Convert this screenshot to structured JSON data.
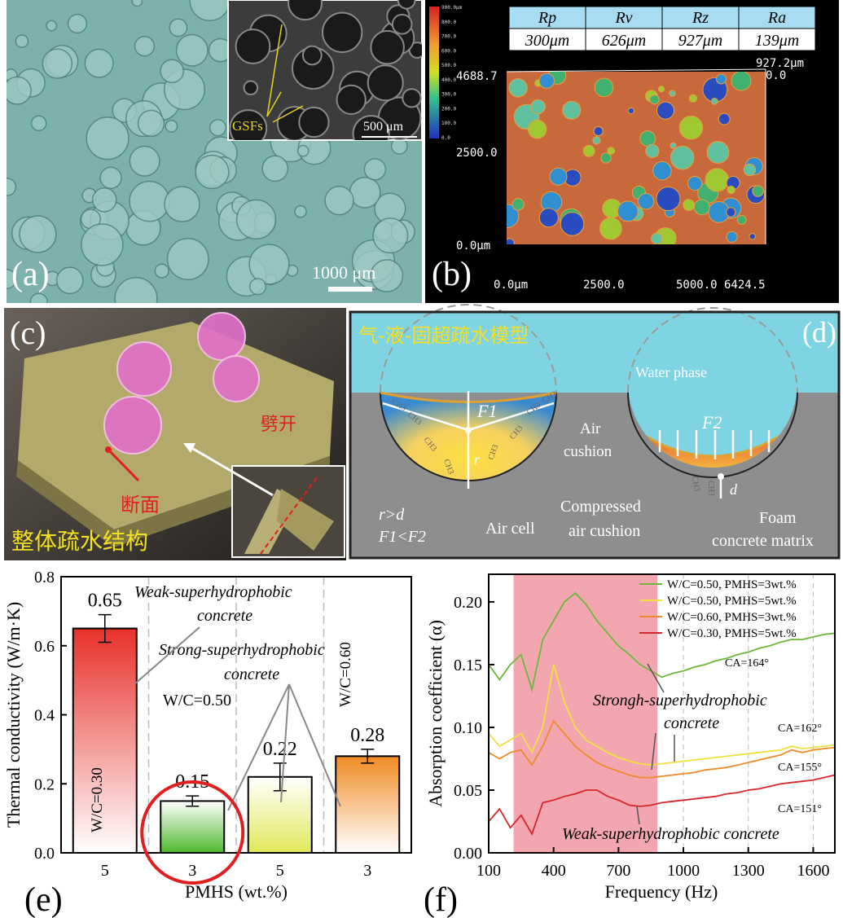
{
  "panels": {
    "a": {
      "label": "(a)",
      "inset_annotation": "GSFs",
      "inset_scale": "500 μm",
      "scale": "1000 μm"
    },
    "b": {
      "label": "(b)",
      "roughness": {
        "headers": [
          "Rp",
          "Rv",
          "Rz",
          "Ra"
        ],
        "values": [
          "300μm",
          "626μm",
          "927μm",
          "139μm"
        ]
      },
      "colorbar": [
        "900.0μm",
        "800.0",
        "700.0",
        "600.0",
        "500.0",
        "400.0",
        "300.0",
        "200.0",
        "100.0",
        "0.0"
      ],
      "y_axis": [
        "4688.7",
        "2500.0",
        "0.0μm"
      ],
      "x_axis": [
        "0.0μm",
        "2500.0",
        "5000.0 6424.5"
      ],
      "z_axis": [
        "927.2μm",
        "0.0"
      ]
    },
    "c": {
      "label": "(c)",
      "split": "劈开",
      "section": "断面",
      "caption": "整体疏水结构"
    },
    "d": {
      "label": "(d)",
      "title": "气-液-固超疏水模型",
      "water": "Water phase",
      "f1": "F1",
      "f2": "F2",
      "air_cushion": [
        "Air",
        "cushion"
      ],
      "r": "r",
      "d": "d",
      "condition": [
        "r>d",
        "F1<F2"
      ],
      "air_cell": "Air cell",
      "compressed": [
        "Compressed",
        "air cushion"
      ],
      "matrix": [
        "Foam",
        "concrete matrix"
      ],
      "ch3": "CH3"
    }
  },
  "chart_data": [
    {
      "type": "bar",
      "panel_label": "(e)",
      "x_label": "PMHS (wt.%)",
      "y_label": "Thermal conductivity (W/m·K)",
      "categories": [
        "5",
        "3",
        "5",
        "3"
      ],
      "values": [
        0.65,
        0.15,
        0.22,
        0.28
      ],
      "errors": [
        0.04,
        0.015,
        0.04,
        0.02
      ],
      "colors": [
        "#e8302a",
        "#4fb82f",
        "#e2e85a",
        "#f08a22"
      ],
      "ylim": [
        0,
        0.8
      ],
      "yticks": [
        {
          "value": 0,
          "label": "0.0"
        },
        {
          "value": 0.2,
          "label": "0.2"
        },
        {
          "value": 0.4,
          "label": "0.4"
        },
        {
          "value": 0.6,
          "label": "0.6"
        },
        {
          "value": 0.8,
          "label": "0.8"
        }
      ],
      "annotations": [
        [
          "Weak-superhydrophobic",
          "concrete"
        ],
        [
          "Strong-superhydrophobic",
          "concrete"
        ],
        [
          "W/C=0.50"
        ],
        [
          "W/C=0.60"
        ],
        [
          "W/C=0.30"
        ]
      ],
      "grid": "x"
    },
    {
      "type": "line",
      "panel_label": "(f)",
      "x_label": "Frequency (Hz)",
      "y_label": "Absorption coefficient (α)",
      "x": [
        100,
        150,
        200,
        250,
        300,
        350,
        400,
        450,
        500,
        550,
        600,
        650,
        700,
        750,
        800,
        850,
        900,
        950,
        1000,
        1050,
        1100,
        1150,
        1200,
        1250,
        1300,
        1350,
        1400,
        1450,
        1500,
        1550,
        1600,
        1650,
        1700
      ],
      "series": [
        {
          "name": "W/C=0.50, PMHS=3wt.%",
          "color": "#6cb83a",
          "values": [
            0.15,
            0.138,
            0.15,
            0.158,
            0.13,
            0.17,
            0.185,
            0.2,
            0.207,
            0.198,
            0.185,
            0.175,
            0.165,
            0.158,
            0.15,
            0.145,
            0.14,
            0.143,
            0.145,
            0.148,
            0.15,
            0.153,
            0.155,
            0.158,
            0.16,
            0.163,
            0.165,
            0.168,
            0.17,
            0.17,
            0.172,
            0.174,
            0.175
          ]
        },
        {
          "name": "W/C=0.50, PMHS=5wt.%",
          "color": "#f2e040",
          "values": [
            0.095,
            0.085,
            0.09,
            0.095,
            0.08,
            0.1,
            0.15,
            0.12,
            0.1,
            0.09,
            0.085,
            0.08,
            0.076,
            0.073,
            0.071,
            0.07,
            0.071,
            0.072,
            0.073,
            0.074,
            0.075,
            0.076,
            0.077,
            0.078,
            0.079,
            0.08,
            0.081,
            0.082,
            0.085,
            0.083,
            0.084,
            0.085,
            0.086
          ]
        },
        {
          "name": "W/C=0.60, PMHS=3wt.%",
          "color": "#ee8a2a",
          "values": [
            0.08,
            0.075,
            0.08,
            0.082,
            0.07,
            0.085,
            0.105,
            0.095,
            0.085,
            0.078,
            0.072,
            0.068,
            0.065,
            0.062,
            0.06,
            0.06,
            0.061,
            0.062,
            0.063,
            0.064,
            0.066,
            0.067,
            0.068,
            0.07,
            0.072,
            0.074,
            0.076,
            0.078,
            0.082,
            0.08,
            0.082,
            0.083,
            0.084
          ]
        },
        {
          "name": "W/C=0.30, PMHS=5wt.%",
          "color": "#d8262a",
          "values": [
            0.025,
            0.035,
            0.02,
            0.03,
            0.015,
            0.04,
            0.042,
            0.045,
            0.047,
            0.05,
            0.05,
            0.045,
            0.042,
            0.038,
            0.037,
            0.038,
            0.04,
            0.041,
            0.042,
            0.043,
            0.044,
            0.045,
            0.047,
            0.048,
            0.05,
            0.051,
            0.053,
            0.055,
            0.056,
            0.057,
            0.058,
            0.06,
            0.062
          ]
        }
      ],
      "xlim": [
        100,
        1700
      ],
      "xticks": [
        100,
        400,
        700,
        1000,
        1300,
        1600
      ],
      "ylim": [
        0,
        0.222
      ],
      "yticks": [
        {
          "value": 0,
          "label": "0.00"
        },
        {
          "value": 0.05,
          "label": "0.05"
        },
        {
          "value": 0.1,
          "label": "0.10"
        },
        {
          "value": 0.15,
          "label": "0.15"
        },
        {
          "value": 0.2,
          "label": "0.20"
        }
      ],
      "highlight_x": [
        215,
        880
      ],
      "highlight_color": "#f4a6b0",
      "contact_angles": [
        "CA=164°",
        "CA=162°",
        "CA=155°",
        "CA=151°"
      ],
      "annotations": [
        [
          "Strongh-superhydrophobic",
          "concrete"
        ],
        [
          "Weak-superhydrophobic concrete"
        ]
      ],
      "legend": "upper right",
      "grid": "x"
    }
  ]
}
